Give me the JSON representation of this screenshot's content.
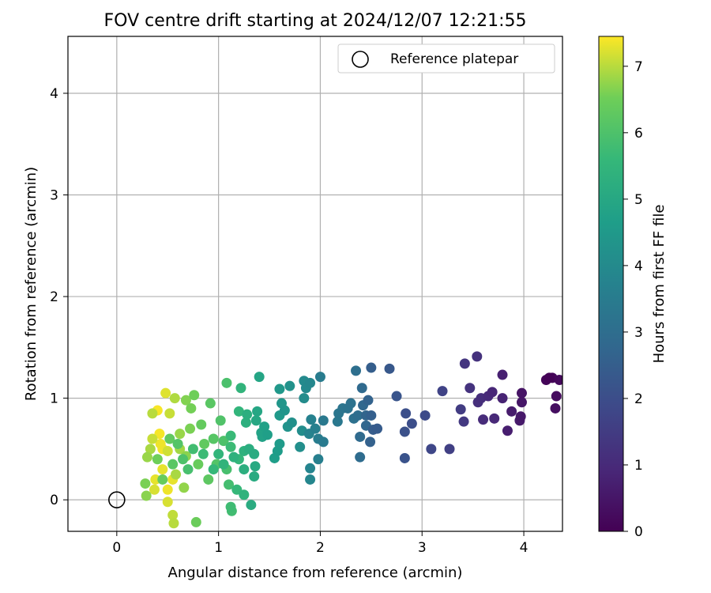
{
  "chart_data": {
    "type": "scatter",
    "title": "FOV centre drift starting at 2024/12/07 12:21:55",
    "xlabel": "Angular distance from reference (arcmin)",
    "ylabel": "Rotation from reference (arcmin)",
    "xlim": [
      -0.48,
      4.38
    ],
    "ylim": [
      -0.31,
      4.56
    ],
    "xticks": [
      0,
      1,
      2,
      3,
      4
    ],
    "yticks": [
      0,
      1,
      2,
      3,
      4
    ],
    "grid": true,
    "legend": {
      "position": "top-right",
      "entries": [
        "Reference platepar"
      ]
    },
    "colorbar": {
      "label": "Hours from first FF file",
      "colormap": "viridis",
      "range": [
        0,
        7.45
      ],
      "ticks": [
        0,
        1,
        2,
        3,
        4,
        5,
        6,
        7
      ]
    },
    "reference": {
      "x": 0,
      "y": 0,
      "label": "Reference platepar"
    },
    "points": [
      {
        "x": 4.25,
        "y": 1.2,
        "h": 0.05
      },
      {
        "x": 4.22,
        "y": 1.18,
        "h": 0.1
      },
      {
        "x": 4.28,
        "y": 1.2,
        "h": 0.15
      },
      {
        "x": 4.35,
        "y": 1.18,
        "h": 0.2
      },
      {
        "x": 4.32,
        "y": 1.02,
        "h": 0.25
      },
      {
        "x": 4.31,
        "y": 0.9,
        "h": 0.3
      },
      {
        "x": 3.98,
        "y": 1.05,
        "h": 0.45
      },
      {
        "x": 3.98,
        "y": 0.96,
        "h": 0.5
      },
      {
        "x": 3.97,
        "y": 0.82,
        "h": 0.55
      },
      {
        "x": 3.96,
        "y": 0.78,
        "h": 0.6
      },
      {
        "x": 3.88,
        "y": 0.87,
        "h": 0.65
      },
      {
        "x": 3.84,
        "y": 0.68,
        "h": 0.7
      },
      {
        "x": 3.79,
        "y": 1.23,
        "h": 0.75
      },
      {
        "x": 3.79,
        "y": 1.0,
        "h": 0.8
      },
      {
        "x": 3.69,
        "y": 1.06,
        "h": 0.9
      },
      {
        "x": 3.71,
        "y": 0.8,
        "h": 0.95
      },
      {
        "x": 3.6,
        "y": 0.79,
        "h": 1.05
      },
      {
        "x": 3.58,
        "y": 1.0,
        "h": 1.1
      },
      {
        "x": 3.65,
        "y": 1.02,
        "h": 1.0
      },
      {
        "x": 3.55,
        "y": 0.96,
        "h": 1.15
      },
      {
        "x": 3.54,
        "y": 1.41,
        "h": 1.2
      },
      {
        "x": 3.47,
        "y": 1.1,
        "h": 1.25
      },
      {
        "x": 3.42,
        "y": 1.34,
        "h": 1.3
      },
      {
        "x": 3.41,
        "y": 0.77,
        "h": 1.4
      },
      {
        "x": 3.38,
        "y": 0.89,
        "h": 1.5
      },
      {
        "x": 3.27,
        "y": 0.5,
        "h": 1.6
      },
      {
        "x": 3.2,
        "y": 1.07,
        "h": 1.7
      },
      {
        "x": 3.09,
        "y": 0.5,
        "h": 1.8
      },
      {
        "x": 3.03,
        "y": 0.83,
        "h": 1.9
      },
      {
        "x": 2.9,
        "y": 0.75,
        "h": 2.0
      },
      {
        "x": 2.84,
        "y": 0.85,
        "h": 2.05
      },
      {
        "x": 2.83,
        "y": 0.67,
        "h": 2.1
      },
      {
        "x": 2.83,
        "y": 0.41,
        "h": 2.15
      },
      {
        "x": 2.75,
        "y": 1.02,
        "h": 2.2
      },
      {
        "x": 2.68,
        "y": 1.29,
        "h": 2.3
      },
      {
        "x": 2.56,
        "y": 0.7,
        "h": 2.4
      },
      {
        "x": 2.52,
        "y": 0.69,
        "h": 2.45
      },
      {
        "x": 2.5,
        "y": 1.3,
        "h": 2.5
      },
      {
        "x": 2.5,
        "y": 0.83,
        "h": 2.55
      },
      {
        "x": 2.49,
        "y": 0.57,
        "h": 2.6
      },
      {
        "x": 2.47,
        "y": 0.98,
        "h": 2.65
      },
      {
        "x": 2.45,
        "y": 0.83,
        "h": 2.7
      },
      {
        "x": 2.45,
        "y": 0.73,
        "h": 2.75
      },
      {
        "x": 2.42,
        "y": 0.93,
        "h": 2.8
      },
      {
        "x": 2.41,
        "y": 1.1,
        "h": 2.85
      },
      {
        "x": 2.39,
        "y": 0.62,
        "h": 2.9
      },
      {
        "x": 2.39,
        "y": 0.42,
        "h": 2.95
      },
      {
        "x": 2.37,
        "y": 0.83,
        "h": 3.0
      },
      {
        "x": 2.35,
        "y": 1.27,
        "h": 3.05
      },
      {
        "x": 2.33,
        "y": 0.8,
        "h": 3.1
      },
      {
        "x": 2.3,
        "y": 0.95,
        "h": 3.15
      },
      {
        "x": 2.27,
        "y": 0.9,
        "h": 3.2
      },
      {
        "x": 2.22,
        "y": 0.9,
        "h": 3.25
      },
      {
        "x": 2.18,
        "y": 0.85,
        "h": 3.3
      },
      {
        "x": 2.17,
        "y": 0.77,
        "h": 3.35
      },
      {
        "x": 2.03,
        "y": 0.78,
        "h": 3.4
      },
      {
        "x": 2.03,
        "y": 0.57,
        "h": 3.45
      },
      {
        "x": 2.0,
        "y": 1.21,
        "h": 3.5
      },
      {
        "x": 1.98,
        "y": 0.6,
        "h": 3.55
      },
      {
        "x": 1.98,
        "y": 0.4,
        "h": 3.6
      },
      {
        "x": 1.95,
        "y": 0.7,
        "h": 3.65
      },
      {
        "x": 1.91,
        "y": 0.79,
        "h": 3.7
      },
      {
        "x": 1.89,
        "y": 0.65,
        "h": 3.75
      },
      {
        "x": 1.9,
        "y": 0.31,
        "h": 3.8
      },
      {
        "x": 1.9,
        "y": 0.2,
        "h": 3.85
      },
      {
        "x": 1.9,
        "y": 1.15,
        "h": 3.9
      },
      {
        "x": 1.86,
        "y": 1.1,
        "h": 3.95
      },
      {
        "x": 1.84,
        "y": 1.17,
        "h": 4.0
      },
      {
        "x": 1.84,
        "y": 1.0,
        "h": 4.05
      },
      {
        "x": 1.82,
        "y": 0.68,
        "h": 4.1
      },
      {
        "x": 1.8,
        "y": 0.52,
        "h": 4.15
      },
      {
        "x": 1.72,
        "y": 0.76,
        "h": 4.2
      },
      {
        "x": 1.7,
        "y": 1.12,
        "h": 4.25
      },
      {
        "x": 1.68,
        "y": 0.72,
        "h": 4.3
      },
      {
        "x": 1.65,
        "y": 0.88,
        "h": 4.35
      },
      {
        "x": 1.62,
        "y": 0.95,
        "h": 4.4
      },
      {
        "x": 1.6,
        "y": 1.09,
        "h": 4.45
      },
      {
        "x": 1.6,
        "y": 0.83,
        "h": 4.5
      },
      {
        "x": 1.6,
        "y": 0.55,
        "h": 4.55
      },
      {
        "x": 1.58,
        "y": 0.48,
        "h": 4.6
      },
      {
        "x": 1.55,
        "y": 0.41,
        "h": 4.65
      },
      {
        "x": 1.48,
        "y": 0.64,
        "h": 4.7
      },
      {
        "x": 1.45,
        "y": 0.72,
        "h": 4.75
      },
      {
        "x": 1.43,
        "y": 0.62,
        "h": 4.8
      },
      {
        "x": 1.42,
        "y": 0.66,
        "h": 4.85
      },
      {
        "x": 1.4,
        "y": 1.21,
        "h": 4.9
      },
      {
        "x": 1.38,
        "y": 0.87,
        "h": 4.95
      },
      {
        "x": 1.37,
        "y": 0.78,
        "h": 5.0
      },
      {
        "x": 1.36,
        "y": 0.33,
        "h": 5.05
      },
      {
        "x": 1.35,
        "y": 0.23,
        "h": 5.1
      },
      {
        "x": 1.32,
        "y": -0.05,
        "h": 5.15
      },
      {
        "x": 1.3,
        "y": 0.5,
        "h": 5.2
      },
      {
        "x": 1.28,
        "y": 0.84,
        "h": 5.25
      },
      {
        "x": 1.27,
        "y": 0.76,
        "h": 5.3
      },
      {
        "x": 1.25,
        "y": 0.48,
        "h": 5.35
      },
      {
        "x": 1.25,
        "y": 0.05,
        "h": 5.4
      },
      {
        "x": 1.22,
        "y": 1.1,
        "h": 5.45
      },
      {
        "x": 1.2,
        "y": 0.87,
        "h": 5.5
      },
      {
        "x": 1.2,
        "y": 0.4,
        "h": 5.55
      },
      {
        "x": 1.18,
        "y": 0.1,
        "h": 5.6
      },
      {
        "x": 1.12,
        "y": 0.63,
        "h": 5.65
      },
      {
        "x": 1.12,
        "y": 0.52,
        "h": 5.7
      },
      {
        "x": 1.12,
        "y": -0.07,
        "h": 5.75
      },
      {
        "x": 1.13,
        "y": -0.11,
        "h": 5.8
      },
      {
        "x": 1.1,
        "y": 0.15,
        "h": 5.85
      },
      {
        "x": 1.08,
        "y": 0.3,
        "h": 5.9
      },
      {
        "x": 1.08,
        "y": 1.15,
        "h": 5.95
      },
      {
        "x": 1.05,
        "y": 0.58,
        "h": 6.0
      },
      {
        "x": 1.02,
        "y": 0.78,
        "h": 6.05
      },
      {
        "x": 0.98,
        "y": 0.35,
        "h": 6.1
      },
      {
        "x": 0.95,
        "y": 0.6,
        "h": 6.15
      },
      {
        "x": 0.92,
        "y": 0.95,
        "h": 6.2
      },
      {
        "x": 0.9,
        "y": 0.2,
        "h": 6.25
      },
      {
        "x": 0.86,
        "y": 0.55,
        "h": 6.3
      },
      {
        "x": 0.83,
        "y": 0.74,
        "h": 6.35
      },
      {
        "x": 0.8,
        "y": 0.35,
        "h": 6.4
      },
      {
        "x": 0.78,
        "y": -0.22,
        "h": 6.45
      },
      {
        "x": 0.76,
        "y": 1.03,
        "h": 6.5
      },
      {
        "x": 0.73,
        "y": 0.9,
        "h": 6.55
      },
      {
        "x": 0.72,
        "y": 0.7,
        "h": 6.6
      },
      {
        "x": 0.68,
        "y": 0.98,
        "h": 6.65
      },
      {
        "x": 0.68,
        "y": 0.43,
        "h": 6.7
      },
      {
        "x": 0.66,
        "y": 0.12,
        "h": 6.75
      },
      {
        "x": 0.62,
        "y": 0.65,
        "h": 6.8
      },
      {
        "x": 0.62,
        "y": 0.5,
        "h": 6.85
      },
      {
        "x": 0.58,
        "y": 0.25,
        "h": 6.9
      },
      {
        "x": 0.57,
        "y": 1.0,
        "h": 6.95
      },
      {
        "x": 0.56,
        "y": -0.23,
        "h": 7.0
      },
      {
        "x": 0.55,
        "y": -0.15,
        "h": 7.05
      },
      {
        "x": 0.52,
        "y": 0.85,
        "h": 7.1
      },
      {
        "x": 0.5,
        "y": 0.48,
        "h": 7.15
      },
      {
        "x": 0.5,
        "y": -0.02,
        "h": 7.2
      },
      {
        "x": 0.48,
        "y": 1.05,
        "h": 7.25
      },
      {
        "x": 0.45,
        "y": 0.3,
        "h": 7.3
      },
      {
        "x": 0.43,
        "y": 0.55,
        "h": 7.35
      },
      {
        "x": 0.42,
        "y": 0.65,
        "h": 7.4
      },
      {
        "x": 0.4,
        "y": 0.88,
        "h": 7.42
      },
      {
        "x": 0.38,
        "y": 0.2,
        "h": 7.3
      },
      {
        "x": 0.37,
        "y": 0.1,
        "h": 7.2
      },
      {
        "x": 0.35,
        "y": 0.6,
        "h": 7.1
      },
      {
        "x": 0.35,
        "y": 0.85,
        "h": 7.0
      },
      {
        "x": 0.33,
        "y": 0.5,
        "h": 6.9
      },
      {
        "x": 0.3,
        "y": 0.42,
        "h": 6.8
      },
      {
        "x": 0.29,
        "y": 0.04,
        "h": 6.7
      },
      {
        "x": 0.28,
        "y": 0.16,
        "h": 6.6
      },
      {
        "x": 0.4,
        "y": 0.4,
        "h": 6.5
      },
      {
        "x": 0.45,
        "y": 0.2,
        "h": 6.4
      },
      {
        "x": 0.52,
        "y": 0.6,
        "h": 6.3
      },
      {
        "x": 0.55,
        "y": 0.35,
        "h": 6.2
      },
      {
        "x": 0.6,
        "y": 0.55,
        "h": 6.1
      },
      {
        "x": 0.65,
        "y": 0.4,
        "h": 6.0
      },
      {
        "x": 0.7,
        "y": 0.3,
        "h": 5.9
      },
      {
        "x": 0.75,
        "y": 0.5,
        "h": 5.8
      },
      {
        "x": 0.85,
        "y": 0.45,
        "h": 5.7
      },
      {
        "x": 0.95,
        "y": 0.3,
        "h": 5.6
      },
      {
        "x": 1.0,
        "y": 0.45,
        "h": 5.5
      },
      {
        "x": 1.05,
        "y": 0.35,
        "h": 5.45
      },
      {
        "x": 1.15,
        "y": 0.42,
        "h": 5.35
      },
      {
        "x": 1.25,
        "y": 0.3,
        "h": 5.25
      },
      {
        "x": 1.35,
        "y": 0.45,
        "h": 5.15
      },
      {
        "x": 0.5,
        "y": 0.1,
        "h": 7.35
      },
      {
        "x": 0.45,
        "y": 0.5,
        "h": 7.38
      },
      {
        "x": 0.55,
        "y": 0.2,
        "h": 7.3
      }
    ]
  }
}
